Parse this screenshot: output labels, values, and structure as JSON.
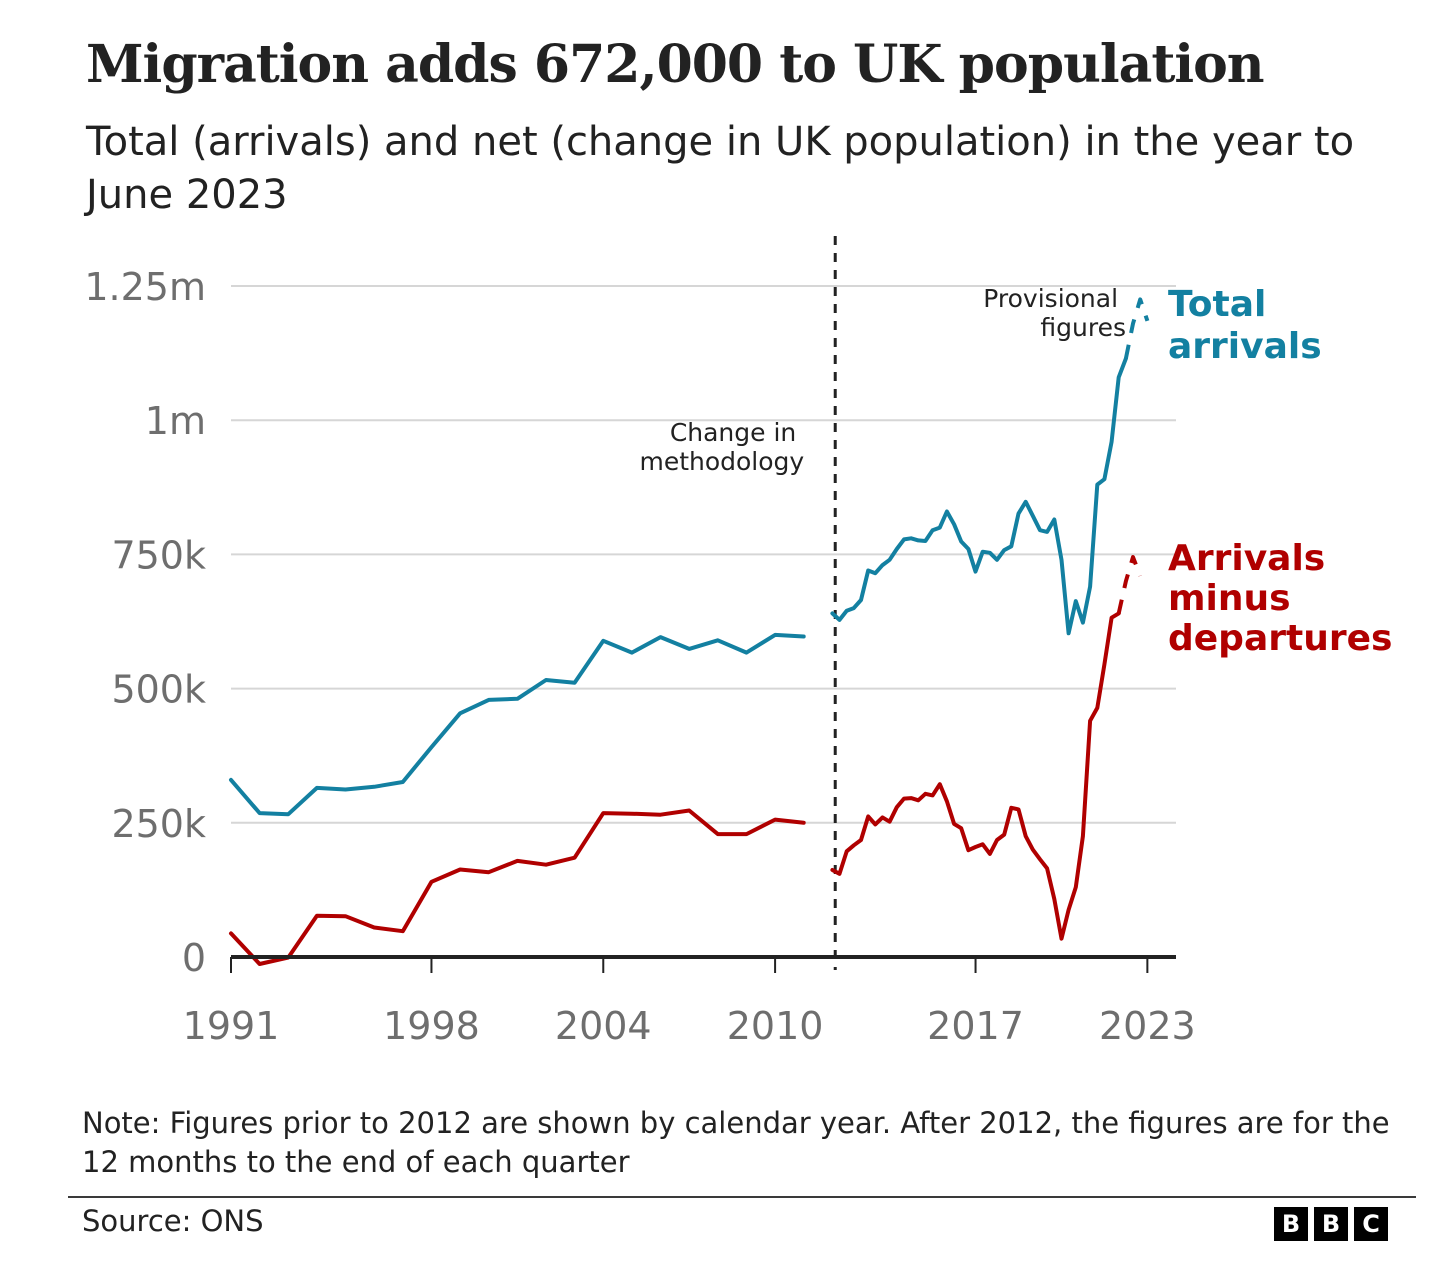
{
  "header": {
    "title": "Migration adds 672,000 to UK population",
    "subtitle": "Total (arrivals) and net (change in UK population) in the year to June 2023"
  },
  "footer": {
    "note": "Note: Figures prior to 2012 are shown by calendar year. After 2012, the figures are for the 12 months to the end of each quarter",
    "source": "Source: ONS",
    "logo_letters": [
      "B",
      "B",
      "C"
    ]
  },
  "colors": {
    "total": "#1380A1",
    "net": "#B00000",
    "grid": "#d6d6d6",
    "axis": "#222222",
    "tick_label": "#6e6e6e",
    "annotation": "#222222"
  },
  "chart_data": {
    "type": "line",
    "title": "Migration adds 672,000 to UK population",
    "subtitle": "Total (arrivals) and net (change in UK population) in the year to June 2023",
    "xlabel": "",
    "ylabel": "",
    "xlim": [
      1991,
      2024.0
    ],
    "ylim": [
      0,
      1250000
    ],
    "x_ticks": [
      1991,
      1998,
      2004,
      2010,
      2017,
      2023
    ],
    "x_tick_labels": [
      "1991",
      "1998",
      "2004",
      "2010",
      "2017",
      "2023"
    ],
    "y_ticks": [
      0,
      250000,
      500000,
      750000,
      1000000,
      1250000
    ],
    "y_tick_labels": [
      "0",
      "250k",
      "500k",
      "750k",
      "1m",
      "1.25m"
    ],
    "grid": true,
    "legend": "direct labels at line ends (right)",
    "annotations": [
      {
        "text": "Change in methodology",
        "lines": [
          "Change in",
          "methodology"
        ],
        "x": 2012.1,
        "style": "dashed vertical line"
      },
      {
        "text": "Provisional figures",
        "lines": [
          "Provisional",
          "figures"
        ],
        "note": "dashed line segments at end of series"
      }
    ],
    "series": [
      {
        "name": "Total arrivals",
        "label_lines": [
          "Total",
          "arrivals"
        ],
        "color": "#1380A1",
        "segments": [
          {
            "style": "solid",
            "points": [
              [
                1991,
                330000
              ],
              [
                1992,
                268000
              ],
              [
                1993,
                266000
              ],
              [
                1994,
                315000
              ],
              [
                1995,
                312000
              ],
              [
                1996,
                317000
              ],
              [
                1997,
                326000
              ],
              [
                1998,
                391000
              ],
              [
                1999,
                454000
              ],
              [
                2000,
                479000
              ],
              [
                2001,
                481000
              ],
              [
                2002,
                516000
              ],
              [
                2003,
                511000
              ],
              [
                2004,
                589000
              ],
              [
                2005,
                567000
              ],
              [
                2006,
                596000
              ],
              [
                2007,
                574000
              ],
              [
                2008,
                590000
              ],
              [
                2009,
                567000
              ],
              [
                2010,
                600000
              ],
              [
                2011,
                597000
              ]
            ]
          },
          {
            "style": "solid",
            "points": [
              [
                2012.0,
                640000
              ],
              [
                2012.25,
                628000
              ],
              [
                2012.5,
                645000
              ],
              [
                2012.75,
                650000
              ],
              [
                2013.0,
                665000
              ],
              [
                2013.25,
                720000
              ],
              [
                2013.5,
                715000
              ],
              [
                2013.75,
                730000
              ],
              [
                2014.0,
                740000
              ],
              [
                2014.25,
                760000
              ],
              [
                2014.5,
                778000
              ],
              [
                2014.75,
                780000
              ],
              [
                2015.0,
                776000
              ],
              [
                2015.25,
                775000
              ],
              [
                2015.5,
                795000
              ],
              [
                2015.75,
                800000
              ],
              [
                2016.0,
                830000
              ],
              [
                2016.25,
                806000
              ],
              [
                2016.5,
                774000
              ],
              [
                2016.75,
                760000
              ],
              [
                2017.0,
                718000
              ],
              [
                2017.25,
                755000
              ],
              [
                2017.5,
                753000
              ],
              [
                2017.75,
                740000
              ],
              [
                2018.0,
                758000
              ],
              [
                2018.25,
                765000
              ],
              [
                2018.5,
                826000
              ],
              [
                2018.75,
                848000
              ],
              [
                2019.0,
                822000
              ],
              [
                2019.25,
                795000
              ],
              [
                2019.5,
                792000
              ],
              [
                2019.75,
                815000
              ],
              [
                2020.0,
                740000
              ],
              [
                2020.25,
                603000
              ],
              [
                2020.5,
                663000
              ],
              [
                2020.75,
                623000
              ],
              [
                2021.0,
                690000
              ],
              [
                2021.25,
                880000
              ],
              [
                2021.5,
                890000
              ],
              [
                2021.75,
                960000
              ],
              [
                2022.0,
                1080000
              ],
              [
                2022.25,
                1115000
              ]
            ]
          },
          {
            "style": "dashed",
            "label": "provisional",
            "points": [
              [
                2022.25,
                1115000
              ],
              [
                2022.5,
                1180000
              ],
              [
                2022.75,
                1225000
              ],
              [
                2023.0,
                1185000
              ]
            ]
          }
        ]
      },
      {
        "name": "Arrivals minus departures",
        "label_lines": [
          "Arrivals",
          "minus",
          "departures"
        ],
        "color": "#B00000",
        "segments": [
          {
            "style": "solid",
            "points": [
              [
                1991,
                44000
              ],
              [
                1992,
                -13000
              ],
              [
                1993,
                -1000
              ],
              [
                1994,
                77000
              ],
              [
                1995,
                76000
              ],
              [
                1996,
                55000
              ],
              [
                1997,
                48000
              ],
              [
                1998,
                140000
              ],
              [
                1999,
                163000
              ],
              [
                2000,
                158000
              ],
              [
                2001,
                179000
              ],
              [
                2002,
                172000
              ],
              [
                2003,
                185000
              ],
              [
                2004,
                268000
              ],
              [
                2005,
                267000
              ],
              [
                2006,
                265000
              ],
              [
                2007,
                273000
              ],
              [
                2008,
                229000
              ],
              [
                2009,
                229000
              ],
              [
                2010,
                256000
              ],
              [
                2011,
                250000
              ]
            ]
          },
          {
            "style": "solid",
            "points": [
              [
                2012.0,
                162000
              ],
              [
                2012.25,
                155000
              ],
              [
                2012.5,
                197000
              ],
              [
                2012.75,
                208000
              ],
              [
                2013.0,
                218000
              ],
              [
                2013.25,
                262000
              ],
              [
                2013.5,
                247000
              ],
              [
                2013.75,
                260000
              ],
              [
                2014.0,
                252000
              ],
              [
                2014.25,
                279000
              ],
              [
                2014.5,
                295000
              ],
              [
                2014.75,
                296000
              ],
              [
                2015.0,
                292000
              ],
              [
                2015.25,
                304000
              ],
              [
                2015.5,
                301000
              ],
              [
                2015.75,
                322000
              ],
              [
                2016.0,
                290000
              ],
              [
                2016.25,
                248000
              ],
              [
                2016.5,
                240000
              ],
              [
                2016.75,
                199000
              ],
              [
                2017.0,
                205000
              ],
              [
                2017.25,
                210000
              ],
              [
                2017.5,
                192000
              ],
              [
                2017.75,
                218000
              ],
              [
                2018.0,
                228000
              ],
              [
                2018.25,
                278000
              ],
              [
                2018.5,
                275000
              ],
              [
                2018.75,
                225000
              ],
              [
                2019.0,
                200000
              ],
              [
                2019.25,
                182000
              ],
              [
                2019.5,
                165000
              ],
              [
                2019.75,
                108000
              ],
              [
                2020.0,
                34000
              ],
              [
                2020.25,
                88000
              ],
              [
                2020.5,
                130000
              ],
              [
                2020.75,
                225000
              ],
              [
                2021.0,
                440000
              ],
              [
                2021.25,
                464000
              ],
              [
                2021.5,
                545000
              ],
              [
                2021.75,
                632000
              ],
              [
                2022.0,
                640000
              ]
            ]
          },
          {
            "style": "dashed",
            "label": "provisional",
            "points": [
              [
                2022.0,
                640000
              ],
              [
                2022.25,
                700000
              ],
              [
                2022.5,
                745000
              ],
              [
                2022.75,
                710000
              ]
            ]
          }
        ]
      }
    ]
  }
}
